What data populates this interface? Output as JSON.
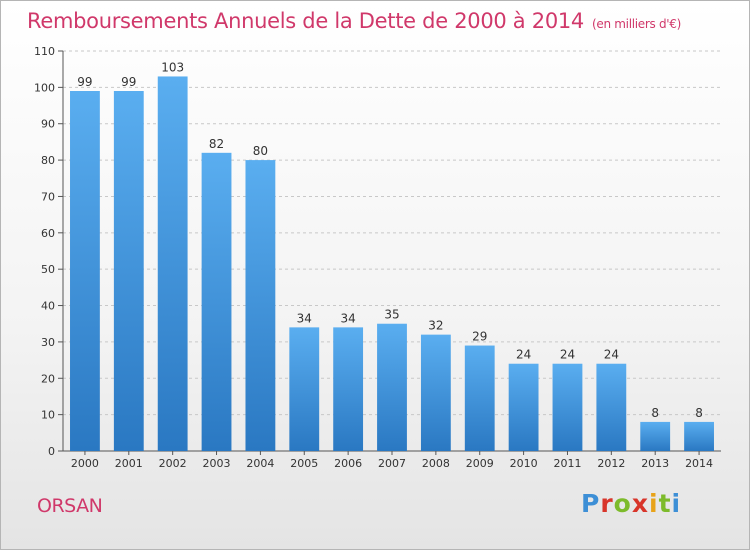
{
  "header": {
    "title": "Remboursements Annuels de la Dette de 2000 à 2014",
    "subtitle": "(en milliers d'€)"
  },
  "footer": {
    "commune": "ORSAN",
    "brand": "Proxiti"
  },
  "colors": {
    "bar_light": "#5aaef0",
    "bar_dark": "#2a78c2",
    "title": "#d0386a",
    "grid": "#c8c8c8"
  },
  "chart_data": {
    "type": "bar",
    "title": "Remboursements Annuels de la Dette de 2000 à 2014",
    "subtitle": "(en milliers d'€)",
    "categories": [
      "2000",
      "2001",
      "2002",
      "2003",
      "2004",
      "2005",
      "2006",
      "2007",
      "2008",
      "2009",
      "2010",
      "2011",
      "2012",
      "2013",
      "2014"
    ],
    "values": [
      99,
      99,
      103,
      82,
      80,
      34,
      34,
      35,
      32,
      29,
      24,
      24,
      24,
      8,
      8
    ],
    "ylim": [
      0,
      110
    ],
    "yticks": [
      0,
      10,
      20,
      30,
      40,
      50,
      60,
      70,
      80,
      90,
      100,
      110
    ],
    "xlabel": "",
    "ylabel": "",
    "grid": true,
    "data_labels": true
  }
}
